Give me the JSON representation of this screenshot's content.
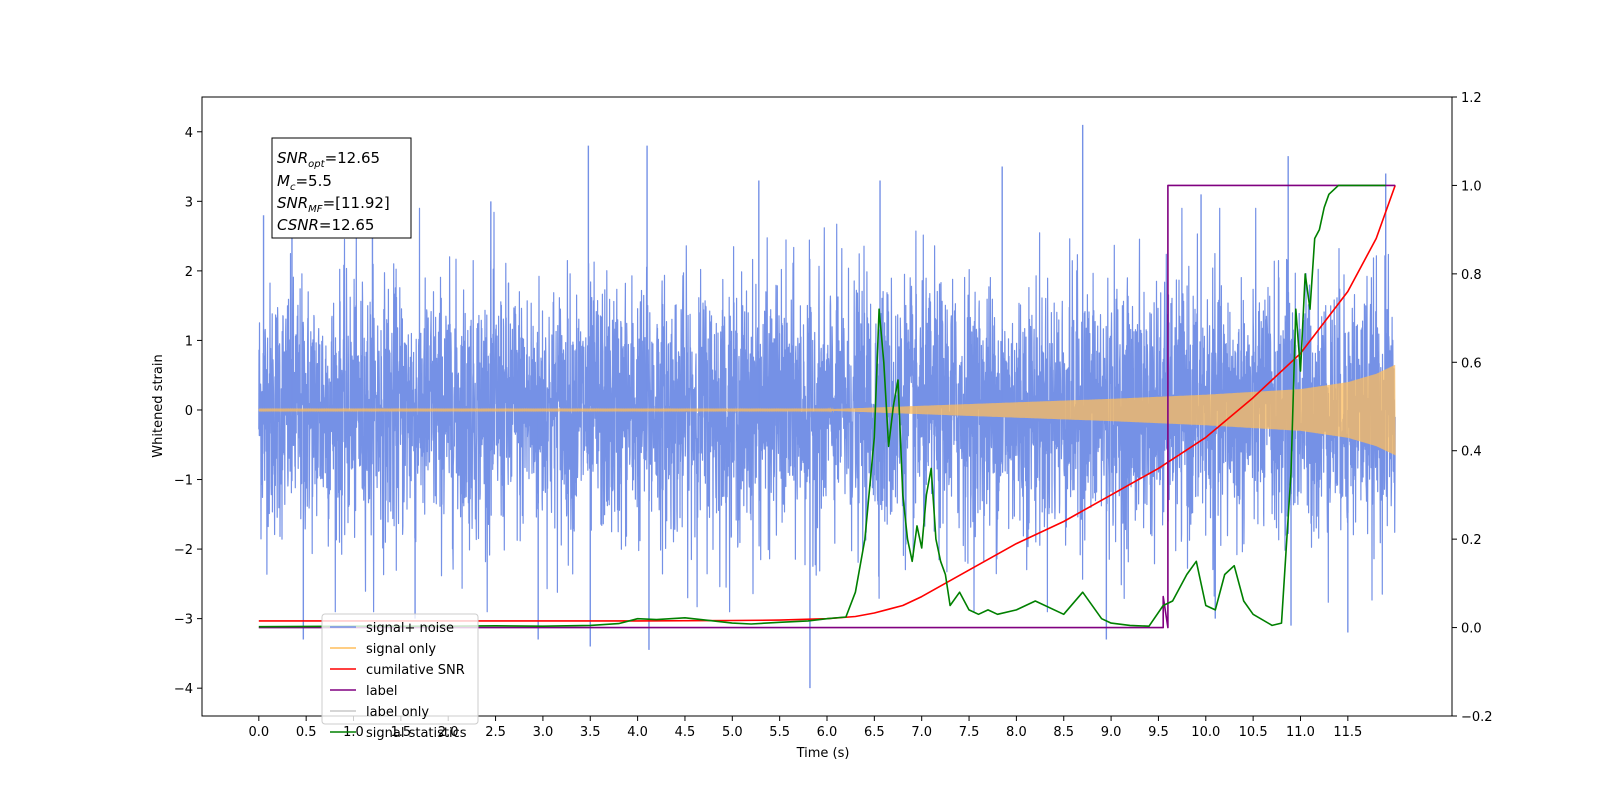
{
  "chart_data": {
    "type": "line",
    "xlabel": "Time (s)",
    "ylabel": "Whitened strain",
    "xlim": [
      -0.6,
      12.6
    ],
    "ylim": [
      -4.4,
      4.5
    ],
    "y2lim": [
      -0.2,
      1.2
    ],
    "grid": false,
    "legend_position": "lower-left",
    "x_ticks": [
      "0.0",
      "0.5",
      "1.0",
      "1.5",
      "2.0",
      "2.5",
      "3.0",
      "3.5",
      "4.0",
      "4.5",
      "5.0",
      "5.5",
      "6.0",
      "6.5",
      "7.0",
      "7.5",
      "8.0",
      "8.5",
      "9.0",
      "9.5",
      "10.0",
      "10.5",
      "11.0",
      "11.5"
    ],
    "y_ticks": [
      "4",
      "3",
      "2",
      "1",
      "0",
      "−1",
      "−2",
      "−3",
      "−4"
    ],
    "y2_ticks": [
      "1.2",
      "1.0",
      "0.8",
      "0.6",
      "0.4",
      "0.2",
      "0.0",
      "−0.2"
    ],
    "annotation": {
      "snr_opt": "=12.65",
      "mc": "=5.5",
      "snr_mf": "=[11.92]",
      "csnr": "=12.65"
    },
    "series": [
      {
        "name": "signal+ noise",
        "color": "#7591e6",
        "axis": "left",
        "x_range": [
          0.0,
          12.0
        ],
        "noise_sigma": 0.9,
        "spike_points": [
          {
            "x": 0.05,
            "y": 2.8
          },
          {
            "x": 0.35,
            "y": 2.6
          },
          {
            "x": 0.47,
            "y": -3.3
          },
          {
            "x": 1.2,
            "y": 3.1
          },
          {
            "x": 1.65,
            "y": -3.0
          },
          {
            "x": 2.45,
            "y": 3.0
          },
          {
            "x": 2.95,
            "y": -3.3
          },
          {
            "x": 3.48,
            "y": 3.8
          },
          {
            "x": 3.5,
            "y": -3.4
          },
          {
            "x": 4.1,
            "y": 3.8
          },
          {
            "x": 4.12,
            "y": -3.45
          },
          {
            "x": 5.28,
            "y": 3.3
          },
          {
            "x": 5.82,
            "y": -4.0
          },
          {
            "x": 6.56,
            "y": 3.3
          },
          {
            "x": 7.85,
            "y": 3.5
          },
          {
            "x": 8.7,
            "y": 4.1
          },
          {
            "x": 8.95,
            "y": -3.3
          },
          {
            "x": 9.95,
            "y": 3.1
          },
          {
            "x": 10.1,
            "y": -3.0
          },
          {
            "x": 10.87,
            "y": 3.65
          },
          {
            "x": 10.9,
            "y": -3.1
          },
          {
            "x": 11.5,
            "y": -3.2
          },
          {
            "x": 11.9,
            "y": 3.4
          }
        ]
      },
      {
        "name": "signal only",
        "color": "#ffbe5c",
        "axis": "left",
        "x_range": [
          0.0,
          12.0
        ],
        "amplitude_envelope": [
          [
            0.0,
            0.01
          ],
          [
            6.0,
            0.01
          ],
          [
            7.0,
            0.06
          ],
          [
            8.0,
            0.11
          ],
          [
            9.0,
            0.16
          ],
          [
            10.0,
            0.22
          ],
          [
            11.0,
            0.3
          ],
          [
            11.5,
            0.4
          ],
          [
            11.8,
            0.52
          ],
          [
            12.0,
            0.65
          ]
        ]
      },
      {
        "name": "cumilative SNR",
        "color": "#ff0000",
        "axis": "right",
        "x": [
          0.0,
          1.0,
          2.0,
          3.0,
          4.0,
          5.0,
          5.5,
          6.0,
          6.3,
          6.5,
          6.8,
          7.0,
          7.5,
          8.0,
          8.5,
          9.0,
          9.5,
          10.0,
          10.5,
          11.0,
          11.5,
          11.8,
          12.0
        ],
        "y": [
          0.015,
          0.015,
          0.015,
          0.015,
          0.015,
          0.016,
          0.017,
          0.02,
          0.025,
          0.033,
          0.05,
          0.07,
          0.13,
          0.19,
          0.24,
          0.3,
          0.36,
          0.43,
          0.52,
          0.62,
          0.76,
          0.88,
          1.0
        ]
      },
      {
        "name": "label",
        "color": "#800080",
        "axis": "right",
        "x": [
          0.0,
          9.55,
          9.55,
          9.6,
          9.6,
          12.0
        ],
        "y": [
          0.0,
          0.0,
          0.07,
          0.0,
          1.0,
          1.0
        ]
      },
      {
        "name": "label only",
        "color": "#c8c8c8",
        "axis": "right",
        "x": [],
        "y": []
      },
      {
        "name": "signal statistics",
        "color": "#008000",
        "axis": "right",
        "x": [
          0.0,
          1.0,
          2.0,
          2.5,
          3.0,
          3.5,
          3.8,
          4.0,
          4.2,
          4.5,
          4.8,
          5.0,
          5.2,
          5.5,
          5.8,
          6.0,
          6.2,
          6.3,
          6.4,
          6.5,
          6.55,
          6.6,
          6.65,
          6.7,
          6.75,
          6.8,
          6.85,
          6.9,
          6.95,
          7.0,
          7.05,
          7.1,
          7.15,
          7.2,
          7.25,
          7.3,
          7.4,
          7.5,
          7.6,
          7.7,
          7.8,
          8.0,
          8.2,
          8.5,
          8.7,
          8.9,
          9.0,
          9.2,
          9.4,
          9.55,
          9.65,
          9.8,
          9.9,
          10.0,
          10.1,
          10.2,
          10.3,
          10.4,
          10.5,
          10.7,
          10.8,
          10.9,
          10.95,
          11.0,
          11.05,
          11.1,
          11.15,
          11.2,
          11.25,
          11.3,
          11.4,
          11.5,
          11.6,
          11.8,
          11.9
        ],
        "y": [
          0.002,
          0.003,
          0.003,
          0.004,
          0.003,
          0.005,
          0.009,
          0.02,
          0.018,
          0.022,
          0.015,
          0.01,
          0.008,
          0.012,
          0.015,
          0.02,
          0.024,
          0.08,
          0.2,
          0.43,
          0.72,
          0.6,
          0.41,
          0.5,
          0.56,
          0.3,
          0.2,
          0.15,
          0.23,
          0.18,
          0.3,
          0.36,
          0.2,
          0.15,
          0.12,
          0.05,
          0.08,
          0.04,
          0.03,
          0.04,
          0.03,
          0.04,
          0.06,
          0.03,
          0.08,
          0.02,
          0.01,
          0.005,
          0.003,
          0.05,
          0.06,
          0.12,
          0.15,
          0.05,
          0.04,
          0.12,
          0.14,
          0.06,
          0.03,
          0.005,
          0.01,
          0.35,
          0.72,
          0.58,
          0.8,
          0.72,
          0.88,
          0.9,
          0.95,
          0.98,
          1.0,
          1.0,
          1.0,
          1.0,
          1.0
        ]
      }
    ]
  }
}
